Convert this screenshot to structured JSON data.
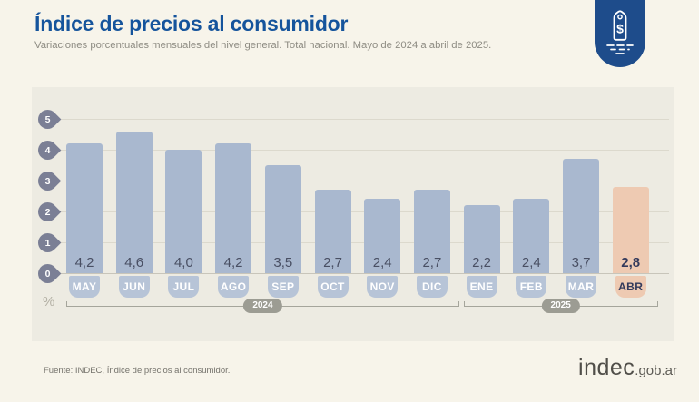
{
  "header": {
    "title": "Índice de precios al consumidor",
    "subtitle": "Variaciones porcentuales mensuales del nivel general. Total nacional. Mayo de 2024 a abril de 2025."
  },
  "badge": {
    "symbol": "$",
    "color": "#1e4c8b"
  },
  "chart_data": {
    "type": "bar",
    "title": "Índice de precios al consumidor",
    "subtitle": "Variaciones porcentuales mensuales del nivel general. Total nacional. Mayo de 2024 a abril de 2025.",
    "categories": [
      "MAY",
      "JUN",
      "JUL",
      "AGO",
      "SEP",
      "OCT",
      "NOV",
      "DIC",
      "ENE",
      "FEB",
      "MAR",
      "ABR"
    ],
    "values": [
      4.2,
      4.6,
      4.0,
      4.2,
      3.5,
      2.7,
      2.4,
      2.7,
      2.2,
      2.4,
      3.7,
      2.8
    ],
    "value_labels": [
      "4,2",
      "4,6",
      "4,0",
      "4,2",
      "3,5",
      "2,7",
      "2,4",
      "2,7",
      "2,2",
      "2,4",
      "3,7",
      "2,8"
    ],
    "highlight_index": 11,
    "unit_label": "%",
    "xlabel": "",
    "ylabel": "%",
    "ylim": [
      0,
      5
    ],
    "yticks": [
      0,
      1,
      2,
      3,
      4,
      5
    ],
    "grid": true,
    "legend": null,
    "year_groups": [
      {
        "label": "2024",
        "start": 0,
        "end": 7
      },
      {
        "label": "2025",
        "start": 8,
        "end": 11
      }
    ],
    "colors": {
      "bar": "#a9b8cf",
      "bar_highlight": "#eecab2",
      "month_pill": "#b7c4d7",
      "month_pill_highlight": "#eecab2",
      "value_text": "#494f63",
      "value_text_highlight": "#333a5c",
      "month_text": "#ffffff",
      "month_text_highlight": "#333a5c",
      "tick_badge": "#7b7f95",
      "gridline": "#dcd9cd",
      "bracket": "#a5a59b",
      "year_pill": "#9c9c93"
    }
  },
  "footer": {
    "source": "Fuente: INDEC, Índice de precios al consumidor.",
    "logo_primary": "indec",
    "logo_suffix": ".gob.ar"
  }
}
